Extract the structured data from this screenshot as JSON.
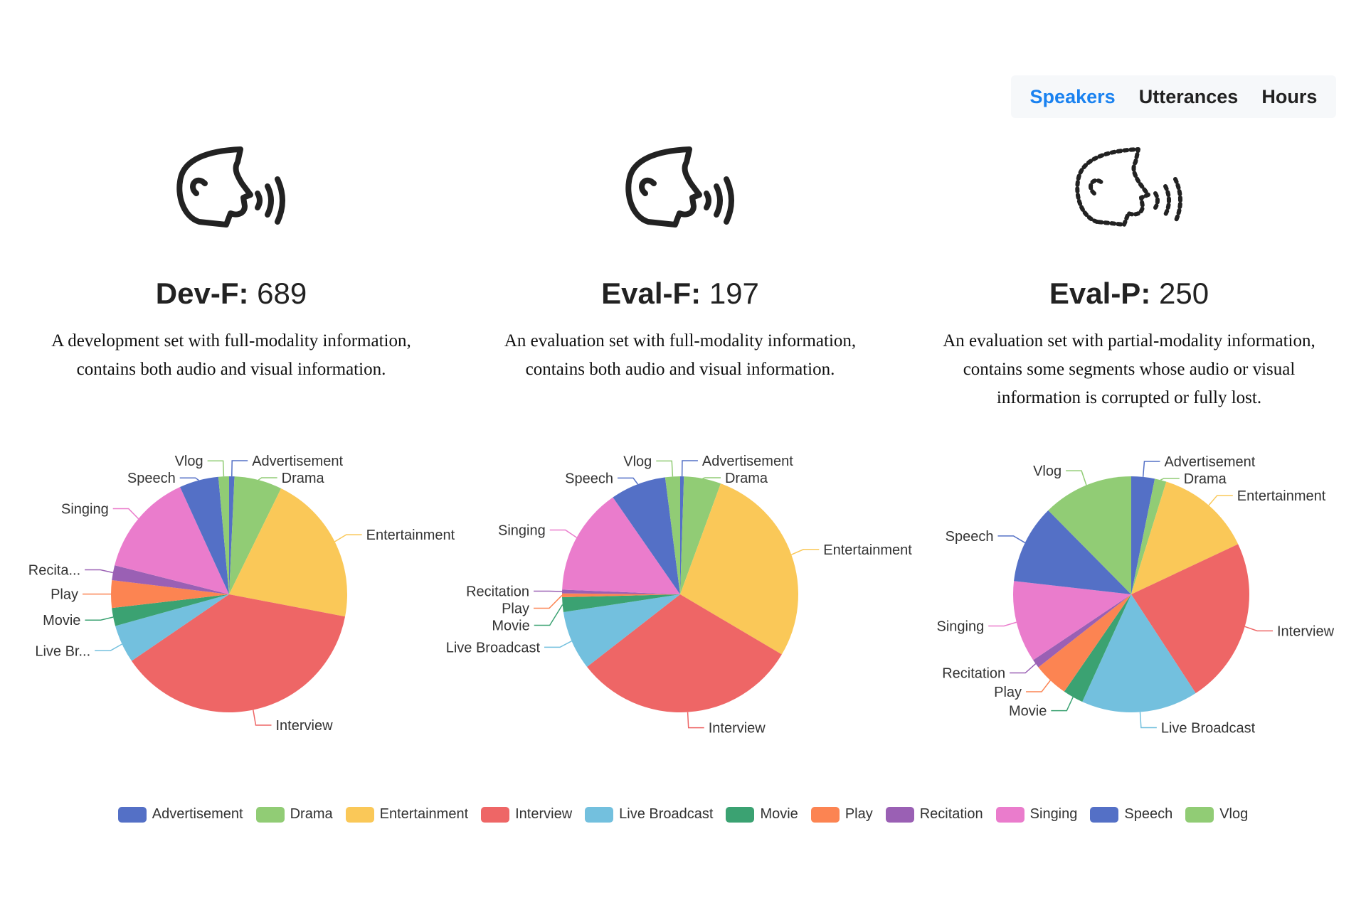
{
  "tabs": [
    {
      "label": "Speakers",
      "active": true
    },
    {
      "label": "Utterances",
      "active": false
    },
    {
      "label": "Hours",
      "active": false
    }
  ],
  "accent_color": "#1a82f0",
  "sets": [
    {
      "name": "Dev-F:",
      "count": "689",
      "icon": "speaking-head-icon",
      "description_lines": [
        "A development set with full-modality information,",
        "contains both audio and visual information."
      ]
    },
    {
      "name": "Eval-F:",
      "count": "197",
      "icon": "speaking-head-icon",
      "description_lines": [
        "An evaluation set with full-modality information,",
        "contains both audio and visual information."
      ]
    },
    {
      "name": "Eval-P:",
      "count": "250",
      "icon": "speaking-head-dashed-icon",
      "description_lines": [
        "An evaluation set with partial-modality information,",
        "contains some segments whose audio or visual",
        "information is corrupted or fully lost."
      ]
    }
  ],
  "chart_data": [
    {
      "type": "pie",
      "title": "Dev-F",
      "categories": [
        "Advertisement",
        "Drama",
        "Entertainment",
        "Interview",
        "Live Broadcast",
        "Movie",
        "Play",
        "Recitation",
        "Singing",
        "Speech",
        "Vlog"
      ],
      "labels": [
        "Advertisement",
        "Drama",
        "Entertainment",
        "Interview",
        "Live Br...",
        "Movie",
        "Play",
        "Recita...",
        "Singing",
        "Speech",
        "Vlog"
      ],
      "values": [
        5,
        45,
        143,
        258,
        36,
        17,
        26,
        14,
        98,
        37,
        10
      ]
    },
    {
      "type": "pie",
      "title": "Eval-F",
      "categories": [
        "Advertisement",
        "Drama",
        "Entertainment",
        "Interview",
        "Live Broadcast",
        "Movie",
        "Play",
        "Recitation",
        "Singing",
        "Speech",
        "Vlog"
      ],
      "labels": [
        "Advertisement",
        "Drama",
        "Entertainment",
        "Interview",
        "Live Broadcast",
        "Movie",
        "Play",
        "Recitation",
        "Singing",
        "Speech",
        "Vlog"
      ],
      "values": [
        1,
        10,
        55,
        61,
        16,
        4,
        1,
        1,
        29,
        15,
        4
      ]
    },
    {
      "type": "pie",
      "title": "Eval-P",
      "categories": [
        "Advertisement",
        "Drama",
        "Entertainment",
        "Interview",
        "Live Broadcast",
        "Movie",
        "Play",
        "Recitation",
        "Singing",
        "Speech",
        "Vlog"
      ],
      "labels": [
        "Advertisement",
        "Drama",
        "Entertainment",
        "Interview",
        "Live Broadcast",
        "Movie",
        "Play",
        "Recitation",
        "Singing",
        "Speech",
        "Vlog"
      ],
      "values": [
        8,
        4,
        33,
        57,
        40,
        7,
        12,
        3,
        28,
        27,
        31
      ]
    }
  ],
  "legend": {
    "placement": "bottom",
    "items": [
      "Advertisement",
      "Drama",
      "Entertainment",
      "Interview",
      "Live Broadcast",
      "Movie",
      "Play",
      "Recitation",
      "Singing",
      "Speech",
      "Vlog"
    ],
    "colors": [
      "#5470c6",
      "#91cc75",
      "#fac858",
      "#ee6666",
      "#73c0de",
      "#3ba272",
      "#fc8452",
      "#9a60b4",
      "#ea7ccc",
      "#5470c6",
      "#91cc75"
    ]
  }
}
